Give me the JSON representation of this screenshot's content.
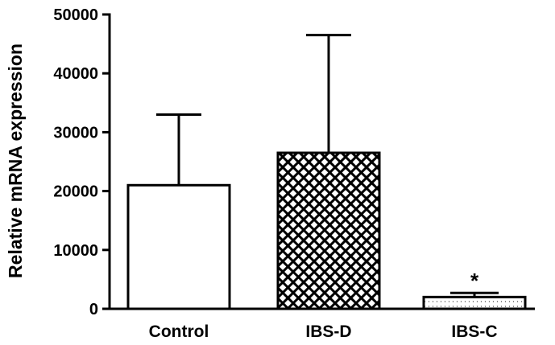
{
  "chart_data": {
    "type": "bar",
    "ylabel": "Relative mRNA expression",
    "xlabel": "",
    "ylim": [
      0,
      50000
    ],
    "yticks": [
      "0",
      "10000",
      "20000",
      "30000",
      "40000",
      "50000"
    ],
    "categories": [
      "Control",
      "IBS-D",
      "IBS-C"
    ],
    "values": [
      21000,
      26500,
      2000
    ],
    "error_upper": [
      33000,
      46500,
      2700
    ],
    "patterns": [
      "none",
      "crosshatch",
      "dotted"
    ],
    "annotations": [
      {
        "category": "IBS-C",
        "text": "*"
      }
    ],
    "grid": false,
    "legend": "none"
  }
}
